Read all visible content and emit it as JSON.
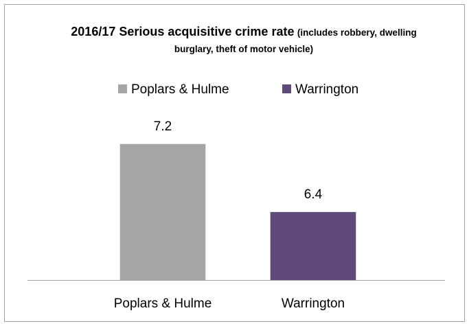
{
  "chart_data": {
    "type": "bar",
    "title": "2016/17 Serious acquisitive crime rate",
    "subtitle": "(includes robbery, dwelling burglary, theft of motor vehicle)",
    "categories": [
      "Poplars & Hulme",
      "Warrington"
    ],
    "series": [
      {
        "name": "Poplars & Hulme",
        "color": "#a6a6a6",
        "values": [
          7.2,
          null
        ]
      },
      {
        "name": "Warrington",
        "color": "#604a7b",
        "values": [
          null,
          6.4
        ]
      }
    ],
    "ylim": [
      5.6,
      7.4
    ],
    "legend": "top"
  }
}
